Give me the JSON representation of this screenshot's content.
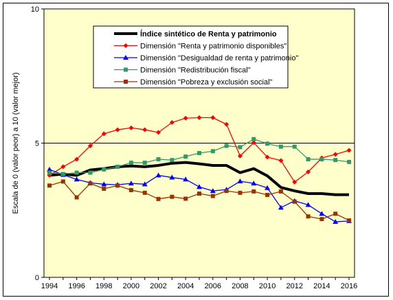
{
  "chart_data": {
    "type": "line",
    "title": "",
    "xlabel": "",
    "ylabel": "Escala de 0 (valor peor) a 10 (valor mejor)",
    "ylim": [
      0,
      10
    ],
    "yticks": [
      "0",
      "5",
      "10"
    ],
    "x": [
      1994,
      1995,
      1996,
      1997,
      1998,
      1999,
      2000,
      2001,
      2002,
      2003,
      2004,
      2005,
      2006,
      2007,
      2008,
      2009,
      2010,
      2011,
      2012,
      2013,
      2014,
      2015,
      2016
    ],
    "xtick_labels": [
      "1994",
      "1996",
      "1998",
      "2000",
      "2002",
      "2004",
      "2006",
      "2008",
      "2010",
      "2012",
      "2014",
      "2016"
    ],
    "legend_position": "top-center",
    "plot_background": "#ffffcc",
    "series": [
      {
        "name": "Índice sintético de Renta y patrimonio",
        "color": "#000000",
        "marker": "none",
        "values": [
          3.8,
          3.85,
          3.8,
          4.0,
          4.05,
          4.12,
          4.15,
          4.12,
          4.17,
          4.25,
          4.28,
          4.23,
          4.17,
          4.17,
          3.9,
          4.05,
          3.78,
          3.35,
          3.22,
          3.12,
          3.12,
          3.08,
          3.08
        ]
      },
      {
        "name": "Dimensión \"Renta y patrimonio disponibles\"",
        "color": "#ff0000",
        "marker": "diamond",
        "values": [
          3.8,
          4.12,
          4.4,
          4.9,
          5.35,
          5.5,
          5.57,
          5.5,
          5.4,
          5.77,
          5.93,
          5.95,
          5.95,
          5.7,
          4.52,
          5.02,
          4.48,
          4.35,
          3.55,
          3.93,
          4.45,
          4.58,
          4.73
        ]
      },
      {
        "name": "Dimensión \"Desigualdad de renta y patrimonio\"",
        "color": "#0000ff",
        "marker": "triangle",
        "values": [
          4.02,
          3.82,
          3.65,
          3.52,
          3.47,
          3.45,
          3.5,
          3.47,
          3.8,
          3.72,
          3.65,
          3.37,
          3.22,
          3.27,
          3.58,
          3.5,
          3.33,
          2.6,
          2.85,
          2.7,
          2.37,
          2.07,
          2.1
        ]
      },
      {
        "name": "Dimensión \"Redistribución fiscal\"",
        "color": "#339966",
        "marker": "square",
        "values": [
          3.9,
          3.85,
          3.9,
          3.9,
          4.02,
          4.12,
          4.27,
          4.27,
          4.4,
          4.37,
          4.5,
          4.63,
          4.7,
          4.9,
          4.85,
          5.15,
          4.98,
          4.87,
          4.87,
          4.4,
          4.4,
          4.37,
          4.3
        ]
      },
      {
        "name": "Dimensión \"Pobreza y exclusión social\"",
        "color": "#993300",
        "marker": "square",
        "values": [
          3.42,
          3.57,
          2.98,
          3.5,
          3.3,
          3.42,
          3.25,
          3.15,
          2.92,
          3.0,
          2.93,
          3.12,
          3.03,
          3.22,
          3.15,
          3.2,
          3.07,
          3.2,
          2.82,
          2.27,
          2.17,
          2.37,
          2.12
        ]
      }
    ]
  }
}
